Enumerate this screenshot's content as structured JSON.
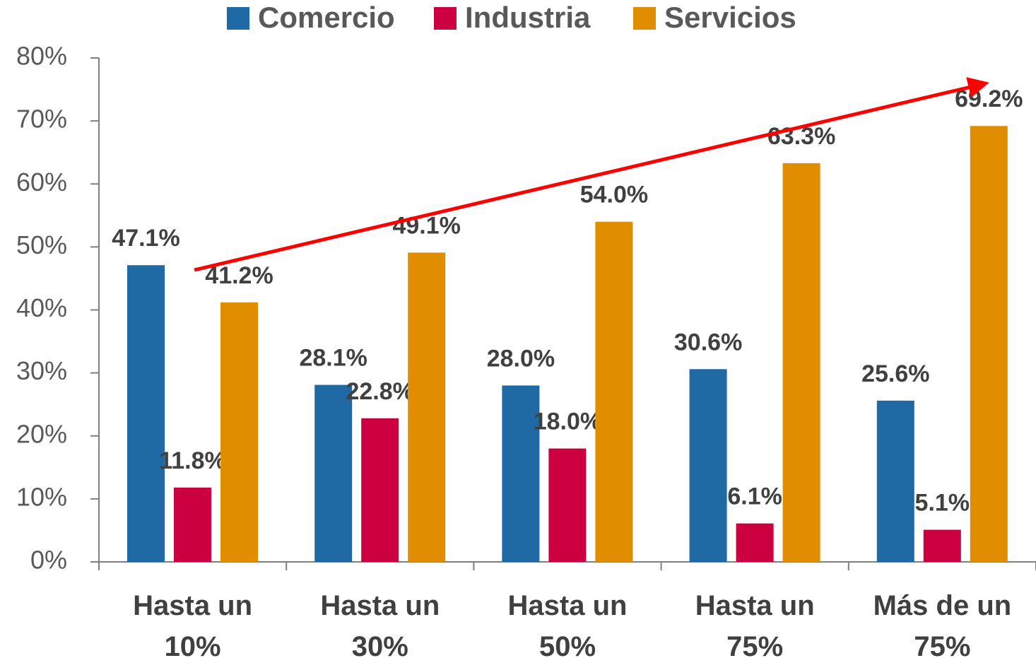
{
  "chart_data": {
    "type": "bar",
    "categories": [
      "Hasta un 10%",
      "Hasta un 30%",
      "Hasta un 50%",
      "Hasta un 75%",
      "Más de un 75%"
    ],
    "series": [
      {
        "name": "Comercio",
        "color": "#1f6aa5",
        "values": [
          47.1,
          28.1,
          28.0,
          30.6,
          25.6
        ],
        "value_labels": [
          "47.1%",
          "28.1%",
          "28.0%",
          "30.6%",
          "25.6%"
        ]
      },
      {
        "name": "Industria",
        "color": "#cc0040",
        "values": [
          11.8,
          22.8,
          18.0,
          6.1,
          5.1
        ],
        "value_labels": [
          "11.8%",
          "22.8%",
          "18.0%",
          "6.1%",
          "5.1%"
        ]
      },
      {
        "name": "Servicios",
        "color": "#e08e00",
        "values": [
          41.2,
          49.1,
          54.0,
          63.3,
          69.2
        ],
        "value_labels": [
          "41.2%",
          "49.1%",
          "54.0%",
          "63.3%",
          "69.2%"
        ]
      }
    ],
    "ylim": [
      0,
      80
    ],
    "yticks": [
      {
        "value": 0,
        "label": "0%"
      },
      {
        "value": 10,
        "label": "10%"
      },
      {
        "value": 20,
        "label": "20%"
      },
      {
        "value": 30,
        "label": "30%"
      },
      {
        "value": 40,
        "label": "40%"
      },
      {
        "value": 50,
        "label": "50%"
      },
      {
        "value": 60,
        "label": "60%"
      },
      {
        "value": 70,
        "label": "70%"
      },
      {
        "value": 80,
        "label": "80%"
      }
    ],
    "legend": "top"
  }
}
